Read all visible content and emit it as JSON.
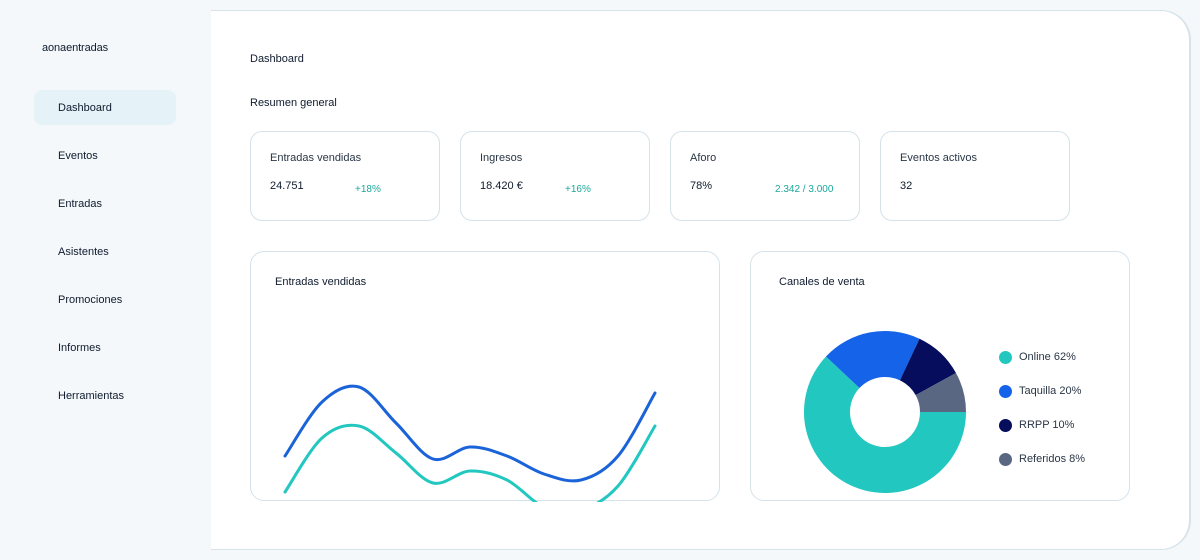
{
  "sidebar": {
    "brand": "aonaentradas",
    "items": [
      {
        "label": "Dashboard",
        "active": true
      },
      {
        "label": "Eventos"
      },
      {
        "label": "Entradas"
      },
      {
        "label": "Asistentes"
      },
      {
        "label": "Promociones"
      },
      {
        "label": "Informes"
      },
      {
        "label": "Herramientas"
      }
    ]
  },
  "header": {
    "title": "Dashboard",
    "section": "Resumen general"
  },
  "kpis": [
    {
      "label": "Entradas vendidas",
      "value": "24.751",
      "delta": "+18%"
    },
    {
      "label": "Ingresos",
      "value": "18.420 €",
      "delta": "+16%"
    },
    {
      "label": "Aforo",
      "value": "78%",
      "delta": "2.342 / 3.000"
    },
    {
      "label": "Eventos activos",
      "value": "32",
      "delta": ""
    }
  ],
  "colors": {
    "accent_teal": "#22c7c0",
    "accent_blue": "#1a63d8",
    "navy": "#050d5c",
    "gray": "#5a6783",
    "delta_green": "#1aa89c"
  },
  "chart_data": [
    {
      "type": "line",
      "title": "Entradas vendidas",
      "x": [
        0,
        1,
        2,
        3,
        4,
        5,
        6,
        7,
        8,
        9,
        10
      ],
      "series": [
        {
          "color": "#1a63d8",
          "values": [
            62,
            80,
            85,
            73,
            61,
            65,
            62,
            56,
            54,
            62,
            83
          ]
        },
        {
          "color": "#22c7c0",
          "values": [
            50,
            68,
            72,
            63,
            53,
            57,
            54,
            45,
            44,
            52,
            72
          ]
        }
      ],
      "ylim": [
        40,
        100
      ],
      "grid": false
    },
    {
      "type": "pie",
      "title": "Canales de venta",
      "series": [
        {
          "name": "Online",
          "value": 62,
          "label": "Online 62%",
          "color": "#22c7c0"
        },
        {
          "name": "Taquilla",
          "value": 20,
          "label": "Taquilla 20%",
          "color": "#1563e8"
        },
        {
          "name": "RRPP",
          "value": 10,
          "label": "RRPP 10%",
          "color": "#050d5c"
        },
        {
          "name": "Referidos",
          "value": 8,
          "label": "Referidos 8%",
          "color": "#5a6783"
        }
      ],
      "legend": "right"
    }
  ]
}
